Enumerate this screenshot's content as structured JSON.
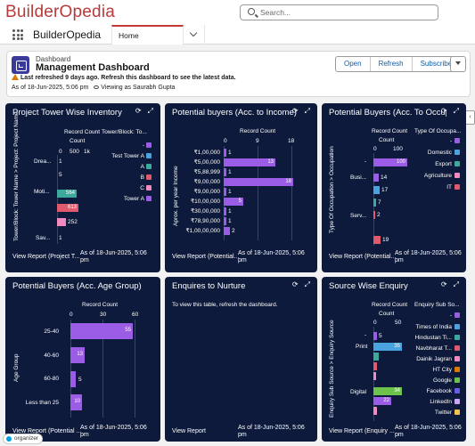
{
  "app": {
    "logo_text": "BuilderOpedia",
    "search_placeholder": "Search...",
    "app_name": "BuilderOpedia",
    "home_tab": "Home"
  },
  "header": {
    "kicker": "Dashboard",
    "title": "Management Dashboard",
    "warning": "Last refreshed 9 days ago. Refresh this dashboard to see the latest data.",
    "as_of": "As of 18-Jun-2025, 5:06 pm",
    "viewing": "Viewing as Saurabh Gupta",
    "buttons": [
      "Open",
      "Refresh",
      "Subscribe"
    ]
  },
  "colors": {
    "panel_bg": "#0d1a3b",
    "purple": "#9b5de5",
    "teal": "#3ba99c",
    "blue": "#4aa3df",
    "red": "#e05a6d",
    "pink": "#f08bc0",
    "green": "#6cc24a"
  },
  "panels": {
    "tower": {
      "title": "Project Tower Wise Inventory",
      "axis_top": "Record Count",
      "ticks": [
        "0",
        "500",
        "1k"
      ],
      "legend_title": "Tower/Block: To...",
      "ylabel": "Tower/Block: Tower Name  >  Project: Project Name",
      "rows": [
        "Drea...",
        "Moti...",
        "Sav..."
      ],
      "values": [
        "1",
        "5",
        "564",
        "613",
        "252",
        "1"
      ],
      "legend": [
        "-",
        "Test Tower A",
        "A",
        "B",
        "C",
        "Tower A"
      ],
      "foot_link": "View Report (Project T...",
      "foot_asof_1": "As of 18-Jun-2025, 5:06",
      "foot_asof_2": "pm"
    },
    "income": {
      "title": "Potential buyers (Acc. to Income)",
      "axis_top": "Record Count",
      "ticks": [
        "0",
        "9",
        "18"
      ],
      "ylabel": "Aprox. per year Income",
      "rows": [
        "₹1,00,000",
        "₹5,00,000",
        "₹5,88,999",
        "₹9,00,000",
        "₹9,00,000",
        "₹10,00,000",
        "₹30,00,000",
        "₹78,90,000",
        "₹1,00,00,000"
      ],
      "values": [
        "1",
        "13",
        "1",
        "18",
        "1",
        "5",
        "1",
        "1",
        "2"
      ],
      "foot_link": "View Report (Potential...",
      "foot_asof_1": "As of 18-Jun-2025, 5:06",
      "foot_asof_2": "pm"
    },
    "occupation": {
      "title": "Potential Buyers (Acc. To Occup...",
      "axis_top": "Record Count",
      "ticks": [
        "0",
        "100"
      ],
      "legend_title": "Type Of Occupa...",
      "ylabel": "Type Of Occupation  >  Occupation",
      "rows": [
        "-",
        "Busi...",
        "Serv..."
      ],
      "values": [
        "100",
        "14",
        "17",
        "7",
        "2",
        "19"
      ],
      "legend": [
        "-",
        "Domestic",
        "Export",
        "Agriculture",
        "IT"
      ],
      "foot_link": "View Report (Potential...",
      "foot_asof_1": "As of 18-Jun-2025, 5:06",
      "foot_asof_2": "pm"
    },
    "age": {
      "title": "Potential Buyers (Acc. Age Group)",
      "axis_top": "Record Count",
      "ticks": [
        "0",
        "30",
        "60"
      ],
      "ylabel": "Age Group",
      "rows": [
        "25-40",
        "40-60",
        "60-80",
        "Less than 25"
      ],
      "values": [
        "55",
        "13",
        "5",
        "10"
      ],
      "foot_link": "View Report (Potential ...",
      "foot_asof_1": "As of 18-Jun-2025, 5:06",
      "foot_asof_2": "pm"
    },
    "nurture": {
      "title": "Enquires to Nurture",
      "message": "To view this table, refresh the dashboard.",
      "foot_link": "View Report",
      "foot_asof_1": "As of 18-Jun-2025, 5:06",
      "foot_asof_2": "pm"
    },
    "source": {
      "title": "Source Wise Enquiry",
      "axis_top": "Record Count",
      "ticks": [
        "0",
        "50"
      ],
      "legend_title": "Enquiry Sub So...",
      "ylabel": "Enquiry Sub Source  >  Enquiry Source",
      "rows": [
        "-",
        "Print",
        "Digital"
      ],
      "values": [
        "5",
        "35",
        "34",
        "22"
      ],
      "legend": [
        "-",
        "Times of India",
        "Hindustan Ti...",
        "Navbharat T...",
        "Dainik Jagran",
        "HT City",
        "Google",
        "Facebook",
        "LinkedIn",
        "Twitter"
      ],
      "foot_link": "View Report (Enquiry ...",
      "foot_asof_1": "As of 18-Jun-2025, 5:06",
      "foot_asof_2": "pm"
    }
  },
  "chart_data": [
    {
      "type": "bar",
      "title": "Project Tower Wise Inventory",
      "xlabel": "Record Count",
      "categories": [
        "Drea...",
        "Moti...",
        "Sav..."
      ],
      "series": [
        {
          "name": "-",
          "values": [
            1,
            564,
            1
          ]
        },
        {
          "name": "Test Tower A",
          "values": [
            0,
            0,
            0
          ]
        }
      ],
      "xlim": [
        0,
        1000
      ]
    },
    {
      "type": "bar",
      "title": "Potential buyers (Acc. to Income)",
      "xlabel": "Record Count",
      "ylabel": "Aprox. per year Income",
      "categories": [
        "₹1,00,000",
        "₹5,00,000",
        "₹5,88,999",
        "₹9,00,000",
        "₹9,00,000",
        "₹10,00,000",
        "₹30,00,000",
        "₹78,90,000",
        "₹1,00,00,000"
      ],
      "values": [
        1,
        13,
        1,
        18,
        1,
        5,
        1,
        1,
        2
      ],
      "xlim": [
        0,
        18
      ]
    },
    {
      "type": "bar",
      "title": "Potential Buyers (Acc. To Occup...",
      "xlabel": "Record Count",
      "categories": [
        "-",
        "Busi...",
        "Serv..."
      ],
      "xlim": [
        0,
        100
      ]
    },
    {
      "type": "bar",
      "title": "Potential Buyers (Acc. Age Group)",
      "xlabel": "Record Count",
      "ylabel": "Age Group",
      "categories": [
        "25-40",
        "40-60",
        "60-80",
        "Less than 25"
      ],
      "values": [
        55,
        13,
        5,
        10
      ],
      "xlim": [
        0,
        60
      ]
    },
    {
      "type": "bar",
      "title": "Source Wise Enquiry",
      "xlabel": "Record Count",
      "categories": [
        "-",
        "Print",
        "Digital"
      ],
      "xlim": [
        0,
        50
      ]
    }
  ]
}
